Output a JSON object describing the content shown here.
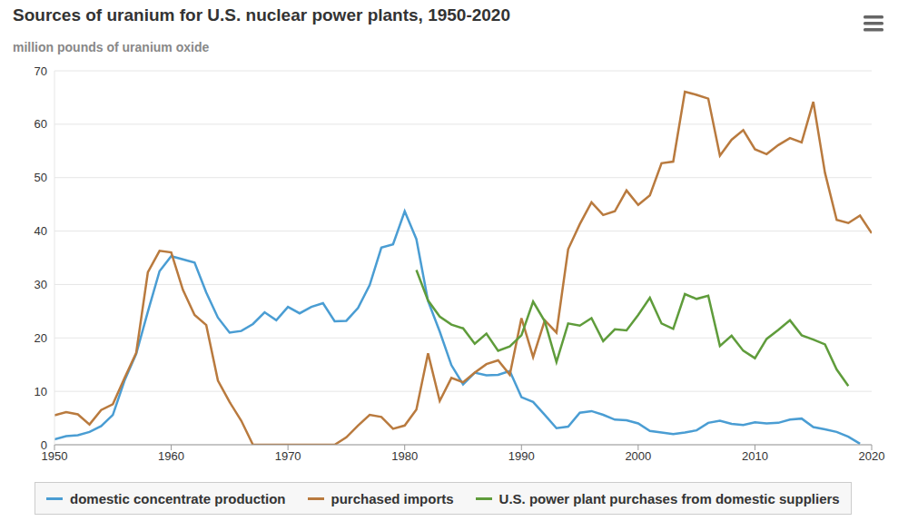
{
  "chart_data": {
    "type": "line",
    "title": "Sources of uranium for U.S. nuclear power plants, 1950-2020",
    "subtitle": "million pounds of uranium oxide",
    "x": [
      1950,
      1951,
      1952,
      1953,
      1954,
      1955,
      1956,
      1957,
      1958,
      1959,
      1960,
      1961,
      1962,
      1963,
      1964,
      1965,
      1966,
      1967,
      1968,
      1969,
      1970,
      1971,
      1972,
      1973,
      1974,
      1975,
      1976,
      1977,
      1978,
      1979,
      1980,
      1981,
      1982,
      1983,
      1984,
      1985,
      1986,
      1987,
      1988,
      1989,
      1990,
      1991,
      1992,
      1993,
      1994,
      1995,
      1996,
      1997,
      1998,
      1999,
      2000,
      2001,
      2002,
      2003,
      2004,
      2005,
      2006,
      2007,
      2008,
      2009,
      2010,
      2011,
      2012,
      2013,
      2014,
      2015,
      2016,
      2017,
      2018,
      2019,
      2020
    ],
    "xlim": [
      1950,
      2020
    ],
    "xticks": [
      1950,
      1960,
      1970,
      1980,
      1990,
      2000,
      2010,
      2020
    ],
    "ylim": [
      0,
      70
    ],
    "yticks": [
      0,
      10,
      20,
      30,
      40,
      50,
      60,
      70
    ],
    "grid": true,
    "legend": "bottom",
    "series": [
      {
        "name": "domestic concentrate production",
        "color": "#4a9dd3",
        "values": [
          1.0,
          1.6,
          1.8,
          2.4,
          3.5,
          5.6,
          12.0,
          17.0,
          24.9,
          32.5,
          35.3,
          34.7,
          34.1,
          28.5,
          23.8,
          21.0,
          21.3,
          22.6,
          24.8,
          23.3,
          25.8,
          24.6,
          25.8,
          26.5,
          23.1,
          23.2,
          25.6,
          29.9,
          36.9,
          37.5,
          43.7,
          38.5,
          26.9,
          21.2,
          14.9,
          11.3,
          13.5,
          13.0,
          13.1,
          13.8,
          8.9,
          8.0,
          5.6,
          3.1,
          3.4,
          6.0,
          6.3,
          5.6,
          4.7,
          4.6,
          4.0,
          2.6,
          2.3,
          2.0,
          2.3,
          2.7,
          4.1,
          4.5,
          3.9,
          3.7,
          4.2,
          4.0,
          4.1,
          4.7,
          4.9,
          3.3,
          2.9,
          2.4,
          1.5,
          0.2,
          null
        ]
      },
      {
        "name": "purchased imports",
        "color": "#b97a3e",
        "values": [
          5.5,
          6.1,
          5.7,
          3.8,
          6.5,
          7.6,
          12.5,
          17.2,
          32.3,
          36.3,
          36.0,
          29.0,
          24.3,
          22.4,
          12.0,
          8.0,
          4.5,
          0,
          0,
          0,
          0,
          0,
          0,
          0,
          0,
          1.4,
          3.6,
          5.6,
          5.2,
          3.0,
          3.6,
          6.6,
          17.1,
          8.2,
          12.5,
          11.7,
          13.5,
          15.1,
          15.8,
          13.1,
          23.7,
          16.4,
          23.3,
          21.0,
          36.6,
          41.3,
          45.4,
          43.0,
          43.7,
          47.6,
          44.9,
          46.7,
          52.7,
          53.0,
          66.1,
          65.5,
          64.8,
          54.1,
          57.1,
          58.9,
          55.3,
          54.4,
          56.1,
          57.4,
          56.6,
          64.2,
          50.9,
          42.1,
          41.5,
          42.9,
          39.6
        ]
      },
      {
        "name": "U.S. power plant purchases from domestic suppliers",
        "color": "#5f9c3b",
        "values": [
          null,
          null,
          null,
          null,
          null,
          null,
          null,
          null,
          null,
          null,
          null,
          null,
          null,
          null,
          null,
          null,
          null,
          null,
          null,
          null,
          null,
          null,
          null,
          null,
          null,
          null,
          null,
          null,
          null,
          null,
          null,
          32.7,
          27.0,
          24.0,
          22.5,
          21.8,
          18.9,
          20.8,
          17.6,
          18.4,
          20.5,
          26.8,
          23.1,
          15.5,
          22.7,
          22.3,
          23.7,
          19.4,
          21.6,
          21.4,
          24.3,
          27.5,
          22.7,
          21.7,
          28.2,
          27.3,
          27.9,
          18.5,
          20.4,
          17.6,
          16.2,
          19.8,
          21.5,
          23.3,
          20.5,
          19.7,
          18.8,
          14.1,
          11.0,
          null,
          null
        ]
      }
    ]
  }
}
